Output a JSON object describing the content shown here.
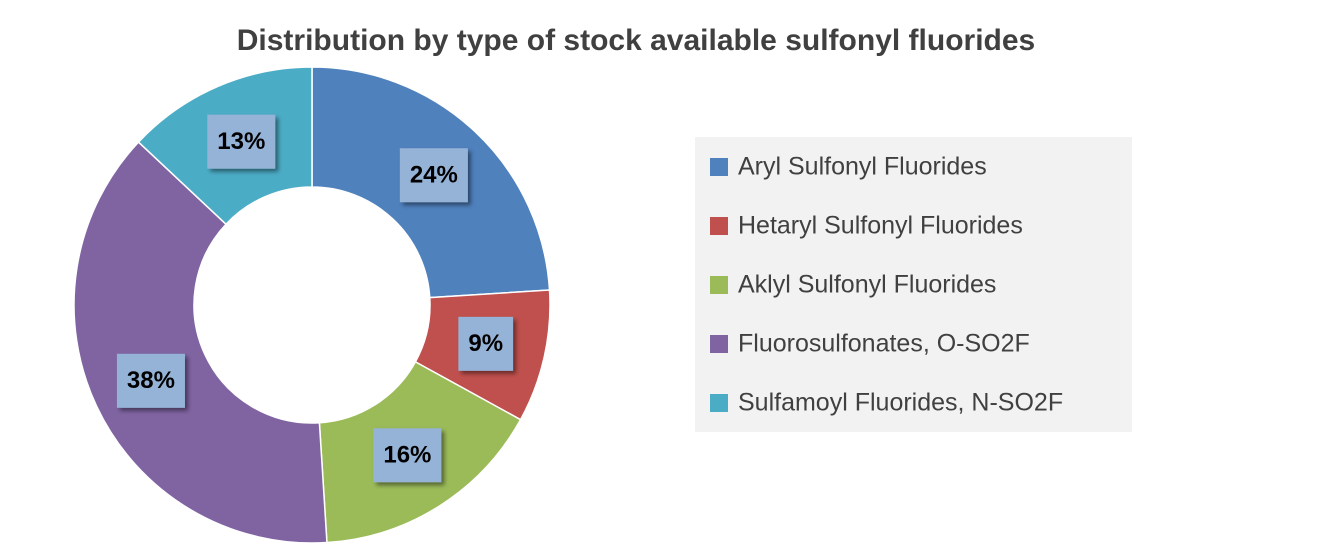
{
  "chart_data": {
    "type": "donut",
    "title": "Distribution by type of stock available sulfonyl fluorides",
    "categories": [
      "Aryl Sulfonyl Fluorides",
      "Hetaryl Sulfonyl Fluorides",
      "Aklyl Sulfonyl Fluorides",
      "Fluorosulfonates, O-SO2F",
      "Sulfamoyl Fluorides, N-SO2F"
    ],
    "values": [
      24,
      9,
      16,
      38,
      13
    ],
    "value_labels": [
      "24%",
      "9%",
      "16%",
      "38%",
      "13%"
    ],
    "colors": [
      "#4f81bd",
      "#c0504d",
      "#9bbb59",
      "#8064a2",
      "#4bacc6"
    ],
    "legend": "right"
  }
}
